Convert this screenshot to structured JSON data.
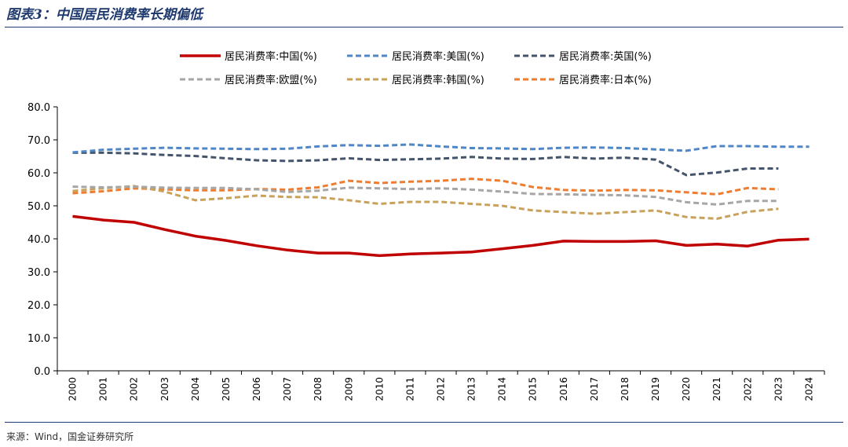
{
  "figure": {
    "title": "图表3：中国居民消费率长期偏低",
    "source": "来源：Wind，国金证券研究所"
  },
  "chart_data": {
    "type": "line",
    "title": "",
    "xlabel": "",
    "ylabel": "",
    "ylim": [
      0,
      80
    ],
    "yticks": [
      "0.0",
      "10.0",
      "20.0",
      "30.0",
      "40.0",
      "50.0",
      "60.0",
      "70.0",
      "80.0"
    ],
    "categories": [
      "2000",
      "2001",
      "2002",
      "2003",
      "2004",
      "2005",
      "2006",
      "2007",
      "2008",
      "2009",
      "2010",
      "2011",
      "2012",
      "2013",
      "2014",
      "2015",
      "2016",
      "2017",
      "2018",
      "2019",
      "2020",
      "2021",
      "2022",
      "2023",
      "2024"
    ],
    "grid": false,
    "legend_position": "top",
    "series": [
      {
        "name": "居民消费率:中国(%)",
        "color": "#c00000",
        "style": "solid",
        "values": [
          46.8,
          45.7,
          45.0,
          42.8,
          40.8,
          39.5,
          37.9,
          36.6,
          35.7,
          35.7,
          34.9,
          35.4,
          35.7,
          36.0,
          37.0,
          38.0,
          39.3,
          39.2,
          39.2,
          39.4,
          38.0,
          38.4,
          37.8,
          39.6,
          39.9
        ]
      },
      {
        "name": "居民消费率:美国(%)",
        "color": "#4f86c6",
        "style": "dashed",
        "values": [
          66.2,
          67.0,
          67.3,
          67.6,
          67.4,
          67.3,
          67.2,
          67.3,
          68.0,
          68.4,
          68.2,
          68.6,
          68.0,
          67.5,
          67.4,
          67.2,
          67.6,
          67.7,
          67.5,
          67.1,
          66.7,
          68.1,
          68.1,
          67.9,
          67.9
        ]
      },
      {
        "name": "居民消费率:英国(%)",
        "color": "#44546a",
        "style": "dashed",
        "values": [
          66.1,
          66.1,
          65.9,
          65.4,
          65.1,
          64.4,
          63.8,
          63.6,
          63.8,
          64.4,
          63.9,
          64.1,
          64.3,
          64.8,
          64.3,
          64.2,
          64.8,
          64.3,
          64.6,
          64.0,
          59.3,
          60.1,
          61.3,
          61.3,
          null
        ]
      },
      {
        "name": "居民消费率:欧盟(%)",
        "color": "#a6a6a6",
        "style": "dashed",
        "values": [
          55.8,
          55.6,
          55.8,
          55.5,
          55.4,
          55.4,
          55.0,
          54.2,
          54.6,
          55.5,
          55.3,
          55.1,
          55.3,
          54.9,
          54.3,
          53.6,
          53.5,
          53.3,
          53.2,
          52.7,
          51.1,
          50.4,
          51.5,
          51.5,
          null
        ]
      },
      {
        "name": "居民消费率:韩国(%)",
        "color": "#c9a15a",
        "style": "dashed",
        "values": [
          54.5,
          55.3,
          56.0,
          54.3,
          51.7,
          52.3,
          53.1,
          52.7,
          52.6,
          51.7,
          50.6,
          51.2,
          51.2,
          50.6,
          50.0,
          48.6,
          48.1,
          47.6,
          48.1,
          48.6,
          46.6,
          46.1,
          48.2,
          49.1,
          null
        ]
      },
      {
        "name": "居民消费率:日本(%)",
        "color": "#ed7d31",
        "style": "dashed",
        "values": [
          53.8,
          54.4,
          55.3,
          55.0,
          54.7,
          54.7,
          55.1,
          54.9,
          55.6,
          57.6,
          56.9,
          57.3,
          57.6,
          58.2,
          57.6,
          55.7,
          54.8,
          54.6,
          54.8,
          54.7,
          54.1,
          53.5,
          55.4,
          55.0,
          null
        ]
      }
    ]
  }
}
